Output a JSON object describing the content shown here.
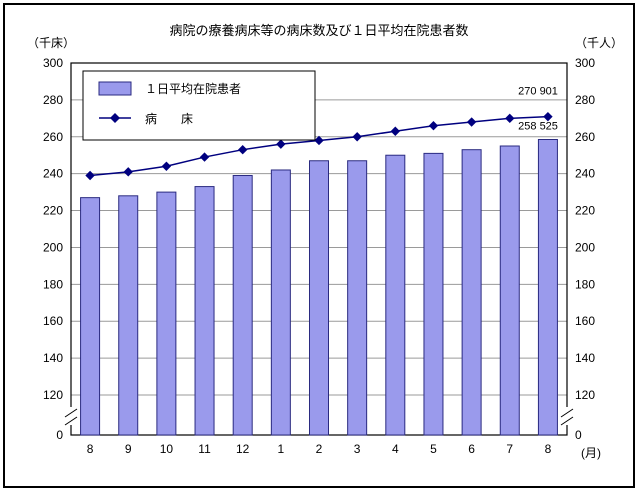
{
  "page": {
    "title": "病院の療養病床等の病床数及び１日平均在院患者数",
    "left_axis_unit": "（千床）",
    "right_axis_unit": "（千人）",
    "x_axis_unit": "(月)"
  },
  "legend": {
    "bar_label": "１日平均在院患者",
    "line_label": "病　　床"
  },
  "chart_data": {
    "type": "bar+line",
    "categories": [
      "8",
      "9",
      "10",
      "11",
      "12",
      "1",
      "2",
      "3",
      "4",
      "5",
      "6",
      "7",
      "8"
    ],
    "series": [
      {
        "name": "１日平均在院患者",
        "type": "bar",
        "values": [
          227,
          228,
          230,
          233,
          239,
          242,
          247,
          247,
          250,
          251,
          253,
          255,
          258.525
        ]
      },
      {
        "name": "病床",
        "type": "line",
        "values": [
          239,
          241,
          244,
          249,
          253,
          256,
          258,
          260,
          263,
          266,
          268,
          270,
          270.901
        ]
      }
    ],
    "annotations": [
      {
        "series": "line",
        "index": 12,
        "text": "270 901"
      },
      {
        "series": "bar",
        "index": 12,
        "text": "258 525"
      }
    ],
    "y_ticks": [
      0,
      120,
      140,
      160,
      180,
      200,
      220,
      240,
      260,
      280,
      300
    ],
    "ylim_display": [
      120,
      300
    ],
    "axis_break": true,
    "grid": true,
    "legend_position": "top-left-inside",
    "colors": {
      "bar_fill": "#9a9aec",
      "bar_border": "#2a2a80",
      "line": "#00007f",
      "grid": "#9a9a9a"
    }
  }
}
